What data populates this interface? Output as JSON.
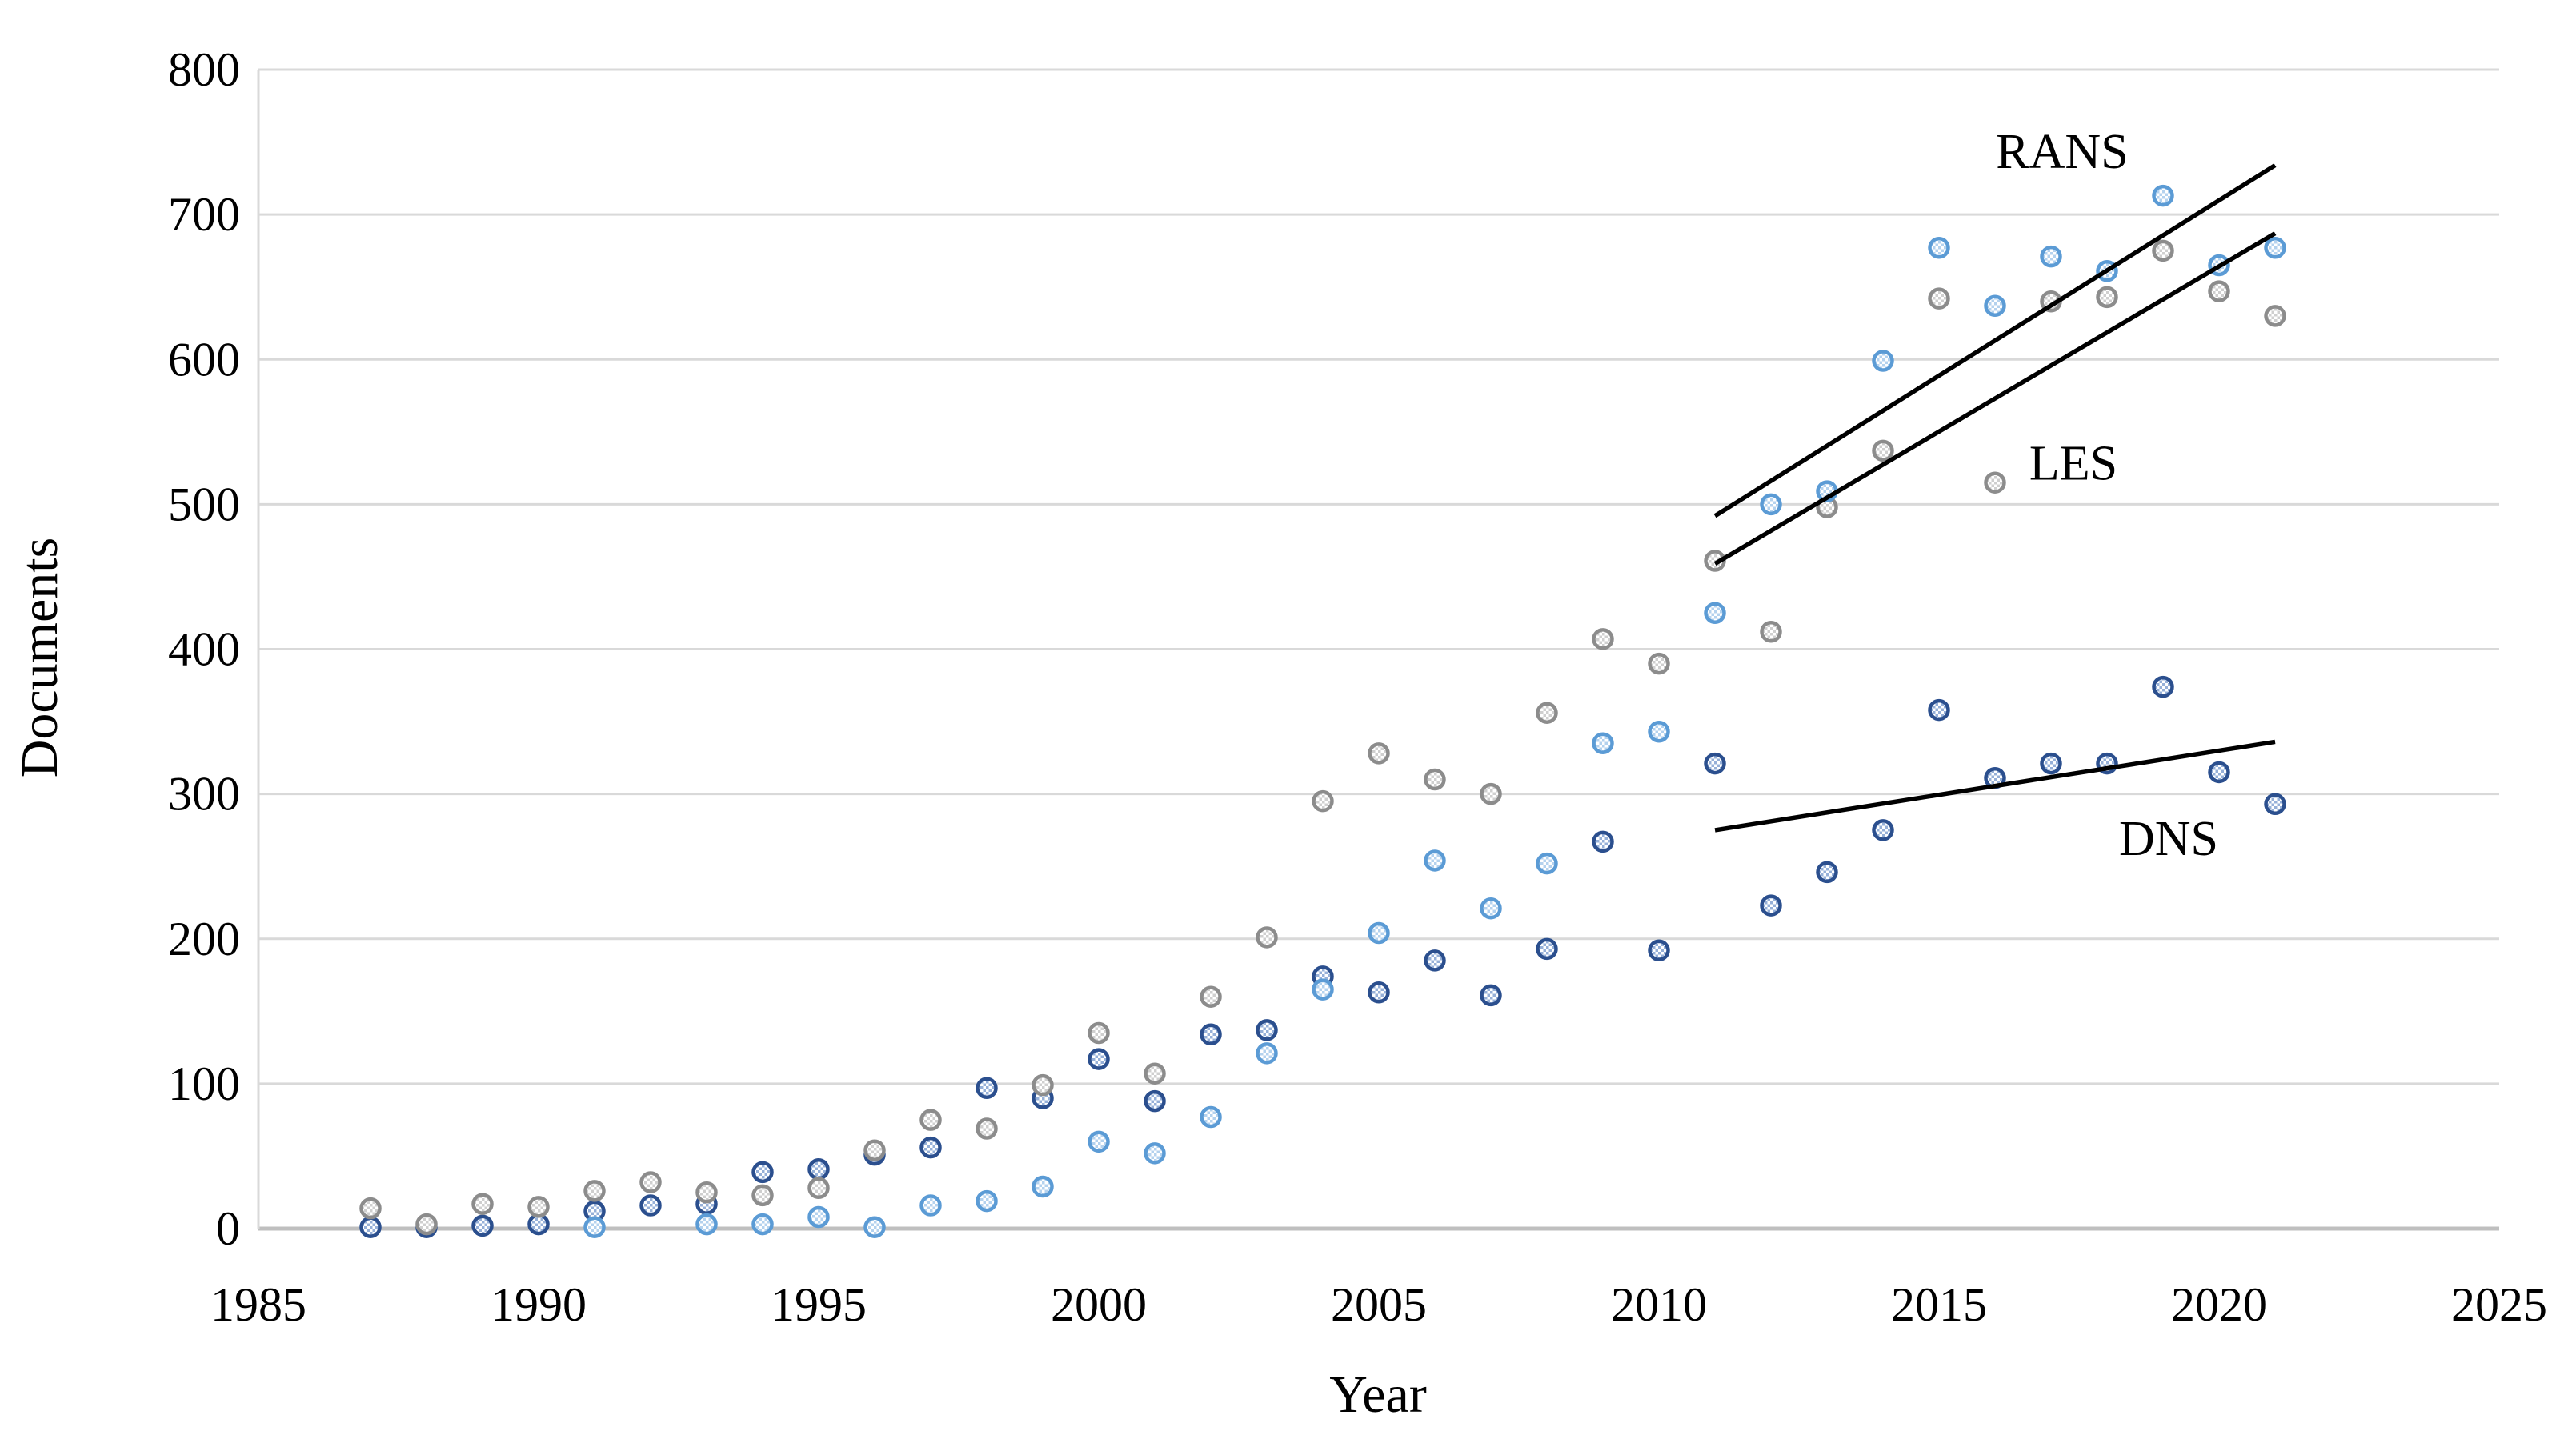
{
  "chart_data": {
    "type": "scatter",
    "title": "",
    "xlabel": "Year",
    "ylabel": "Documents",
    "xlim": [
      1985,
      2025
    ],
    "ylim": [
      0,
      800
    ],
    "x_ticks": [
      1985,
      1990,
      1995,
      2000,
      2005,
      2010,
      2015,
      2020,
      2025
    ],
    "y_ticks": [
      0,
      100,
      200,
      300,
      400,
      500,
      600,
      700,
      800
    ],
    "grid": "horizontal",
    "grid_color": "#D9D9D9",
    "axis_line_color": "#BFBFBF",
    "legend_position": "none",
    "series": [
      {
        "name": "DNS",
        "marker": "circle-checker",
        "stroke": "#2B4F8E",
        "fill": "#96B0D8",
        "points": [
          [
            1987,
            1
          ],
          [
            1988,
            1
          ],
          [
            1989,
            2
          ],
          [
            1990,
            3
          ],
          [
            1991,
            12
          ],
          [
            1992,
            16
          ],
          [
            1993,
            17
          ],
          [
            1994,
            39
          ],
          [
            1995,
            41
          ],
          [
            1996,
            51
          ],
          [
            1997,
            56
          ],
          [
            1998,
            97
          ],
          [
            1999,
            90
          ],
          [
            2000,
            117
          ],
          [
            2001,
            88
          ],
          [
            2002,
            134
          ],
          [
            2003,
            137
          ],
          [
            2004,
            174
          ],
          [
            2005,
            163
          ],
          [
            2006,
            185
          ],
          [
            2007,
            161
          ],
          [
            2008,
            193
          ],
          [
            2009,
            267
          ],
          [
            2010,
            192
          ],
          [
            2011,
            321
          ],
          [
            2012,
            223
          ],
          [
            2013,
            246
          ],
          [
            2014,
            275
          ],
          [
            2015,
            358
          ],
          [
            2016,
            311
          ],
          [
            2017,
            321
          ],
          [
            2018,
            321
          ],
          [
            2019,
            374
          ],
          [
            2020,
            315
          ],
          [
            2021,
            293
          ]
        ]
      },
      {
        "name": "LES",
        "marker": "circle-checker",
        "stroke": "#8C8C8C",
        "fill": "#CFCFCF",
        "points": [
          [
            1987,
            14
          ],
          [
            1988,
            3
          ],
          [
            1989,
            17
          ],
          [
            1990,
            15
          ],
          [
            1991,
            26
          ],
          [
            1992,
            32
          ],
          [
            1993,
            25
          ],
          [
            1994,
            23
          ],
          [
            1995,
            28
          ],
          [
            1996,
            54
          ],
          [
            1997,
            75
          ],
          [
            1998,
            69
          ],
          [
            1999,
            99
          ],
          [
            2000,
            135
          ],
          [
            2001,
            107
          ],
          [
            2002,
            160
          ],
          [
            2003,
            201
          ],
          [
            2004,
            295
          ],
          [
            2005,
            328
          ],
          [
            2006,
            310
          ],
          [
            2007,
            300
          ],
          [
            2008,
            356
          ],
          [
            2009,
            407
          ],
          [
            2010,
            390
          ],
          [
            2011,
            461
          ],
          [
            2012,
            412
          ],
          [
            2013,
            498
          ],
          [
            2014,
            537
          ],
          [
            2015,
            642
          ],
          [
            2016,
            515
          ],
          [
            2017,
            640
          ],
          [
            2018,
            643
          ],
          [
            2019,
            675
          ],
          [
            2020,
            647
          ],
          [
            2021,
            630
          ]
        ]
      },
      {
        "name": "RANS",
        "marker": "circle-checker",
        "stroke": "#5B9BD5",
        "fill": "#B4D2EE",
        "points": [
          [
            1991,
            1
          ],
          [
            1993,
            3
          ],
          [
            1994,
            3
          ],
          [
            1995,
            8
          ],
          [
            1996,
            1
          ],
          [
            1997,
            16
          ],
          [
            1998,
            19
          ],
          [
            1999,
            29
          ],
          [
            2000,
            60
          ],
          [
            2001,
            52
          ],
          [
            2002,
            77
          ],
          [
            2003,
            121
          ],
          [
            2004,
            165
          ],
          [
            2005,
            204
          ],
          [
            2006,
            254
          ],
          [
            2007,
            221
          ],
          [
            2008,
            252
          ],
          [
            2009,
            335
          ],
          [
            2010,
            343
          ],
          [
            2011,
            425
          ],
          [
            2012,
            500
          ],
          [
            2013,
            509
          ],
          [
            2014,
            599
          ],
          [
            2015,
            677
          ],
          [
            2016,
            637
          ],
          [
            2017,
            671
          ],
          [
            2018,
            661
          ],
          [
            2019,
            713
          ],
          [
            2020,
            665
          ],
          [
            2021,
            677
          ]
        ]
      }
    ],
    "trendlines": [
      {
        "series": "RANS",
        "x1": 2011,
        "y1": 492,
        "x2": 2021,
        "y2": 734,
        "color": "#000000"
      },
      {
        "series": "LES",
        "x1": 2011,
        "y1": 459,
        "x2": 2021,
        "y2": 687,
        "color": "#000000"
      },
      {
        "series": "DNS",
        "x1": 2011,
        "y1": 275,
        "x2": 2021,
        "y2": 336,
        "color": "#000000"
      }
    ],
    "annotations": [
      {
        "text": "RANS",
        "x": 2017.2,
        "y": 743
      },
      {
        "text": "LES",
        "x": 2017.4,
        "y": 528
      },
      {
        "text": "DNS",
        "x": 2019.1,
        "y": 269
      }
    ]
  }
}
